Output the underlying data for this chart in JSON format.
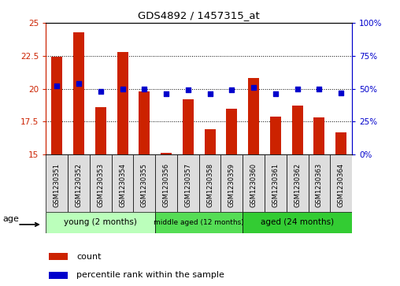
{
  "title": "GDS4892 / 1457315_at",
  "samples": [
    "GSM1230351",
    "GSM1230352",
    "GSM1230353",
    "GSM1230354",
    "GSM1230355",
    "GSM1230356",
    "GSM1230357",
    "GSM1230358",
    "GSM1230359",
    "GSM1230360",
    "GSM1230361",
    "GSM1230362",
    "GSM1230363",
    "GSM1230364"
  ],
  "bar_values": [
    22.4,
    24.3,
    18.6,
    22.8,
    19.8,
    15.1,
    19.2,
    16.9,
    18.5,
    20.8,
    17.9,
    18.7,
    17.8,
    16.7
  ],
  "percentile_values": [
    52,
    54,
    48,
    50,
    50,
    46,
    49,
    46,
    49,
    51,
    46,
    50,
    50,
    47
  ],
  "bar_color": "#cc2200",
  "dot_color": "#0000cc",
  "ylim_left": [
    15,
    25
  ],
  "ylim_right": [
    0,
    100
  ],
  "yticks_left": [
    15,
    17.5,
    20,
    22.5,
    25
  ],
  "yticks_right": [
    0,
    25,
    50,
    75,
    100
  ],
  "ytick_labels_right": [
    "0%",
    "25%",
    "50%",
    "75%",
    "100%"
  ],
  "group_labels": [
    "young (2 months)",
    "middle aged (12 months)",
    "aged (24 months)"
  ],
  "group_starts": [
    0,
    5,
    9
  ],
  "group_ends": [
    4,
    8,
    13
  ],
  "group_colors": [
    "#bbffbb",
    "#55dd55",
    "#33cc33"
  ],
  "age_label": "age",
  "legend_count_label": "count",
  "legend_percentile_label": "percentile rank within the sample",
  "bar_baseline": 15,
  "bar_width": 0.5
}
